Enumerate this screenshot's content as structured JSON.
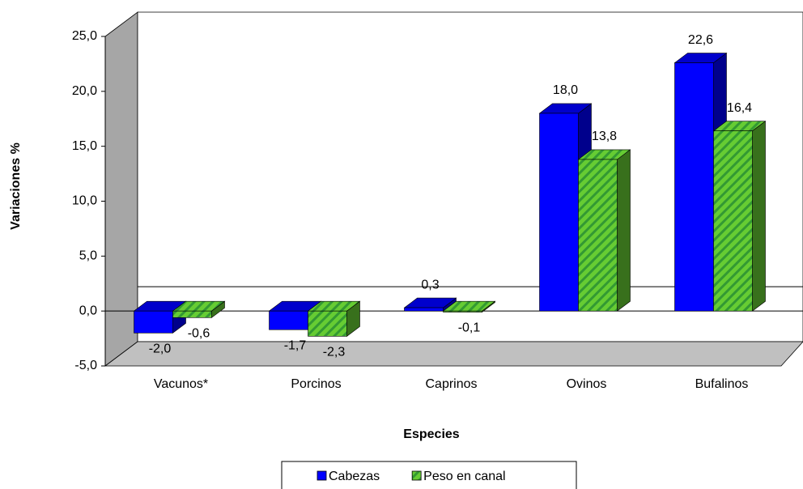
{
  "chart_data": {
    "type": "bar3d",
    "x_label": "Especies",
    "y_label": "Variaciones %",
    "categories": [
      "Vacunos*",
      "Porcinos",
      "Caprinos",
      "Ovinos",
      "Bufalinos"
    ],
    "series": [
      {
        "name": "Cabezas",
        "color": "#0000ff",
        "values": [
          -2.0,
          -1.7,
          0.3,
          18.0,
          22.6
        ],
        "value_labels": [
          "-2,0",
          "-1,7",
          "0,3",
          "18,0",
          "22,6"
        ]
      },
      {
        "name": "Peso en canal",
        "color": "#66cc33",
        "values": [
          -0.6,
          -2.3,
          -0.1,
          13.8,
          16.4
        ],
        "value_labels": [
          "-0,6",
          "-2,3",
          "-0,1",
          "13,8",
          "16,4"
        ]
      }
    ],
    "ylim": [
      -5,
      25
    ],
    "yticks": [
      {
        "value": -5,
        "label": "-5,0"
      },
      {
        "value": 0,
        "label": "0,0"
      },
      {
        "value": 5,
        "label": "5,0"
      },
      {
        "value": 10,
        "label": "10,0"
      },
      {
        "value": 15,
        "label": "15,0"
      },
      {
        "value": 20,
        "label": "20,0"
      },
      {
        "value": 25,
        "label": "25,0"
      }
    ],
    "grid": false,
    "legend": "bottom"
  }
}
